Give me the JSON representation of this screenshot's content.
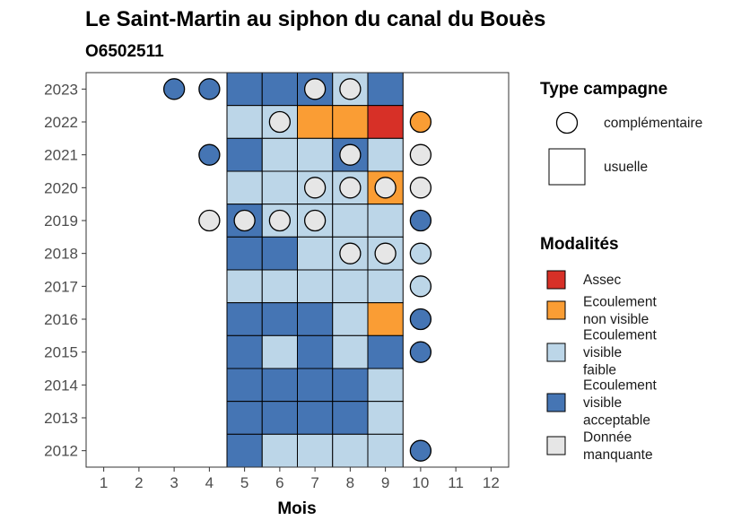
{
  "chart_data": {
    "type": "heatmap",
    "title": "Le Saint-Martin au siphon du canal du Bouès",
    "subtitle": "O6502511",
    "xlabel": "Mois",
    "ylabel": "",
    "x_ticks": [
      "1",
      "2",
      "3",
      "4",
      "5",
      "6",
      "7",
      "8",
      "9",
      "10",
      "11",
      "12"
    ],
    "y_ticks": [
      "2012",
      "2013",
      "2014",
      "2015",
      "2016",
      "2017",
      "2018",
      "2019",
      "2020",
      "2021",
      "2022",
      "2023"
    ],
    "xlim": [
      0.5,
      12.5
    ],
    "ylim": [
      2011.5,
      2023.5
    ],
    "grid": false,
    "legend_position": "right",
    "colors": {
      "Assec": "#d73027",
      "Ecoulement non visible": "#fa9d34",
      "Ecoulement visible faible": "#bcd6e8",
      "Ecoulement visible acceptable": "#4575b4",
      "Donnée manquante": "#e6e6e6"
    },
    "legend_type": {
      "title": "Type campagne",
      "items": [
        {
          "label": "complémentaire",
          "shape": "circle"
        },
        {
          "label": "usuelle",
          "shape": "square"
        }
      ]
    },
    "legend_modalites": {
      "title": "Modalités",
      "items": [
        {
          "key": "Assec",
          "lines": [
            "Assec"
          ]
        },
        {
          "key": "Ecoulement non visible",
          "lines": [
            "Ecoulement",
            "non visible"
          ]
        },
        {
          "key": "Ecoulement visible faible",
          "lines": [
            "Ecoulement",
            "visible",
            "faible"
          ]
        },
        {
          "key": "Ecoulement visible acceptable",
          "lines": [
            "Ecoulement",
            "visible",
            "acceptable"
          ]
        },
        {
          "key": "Donnée manquante",
          "lines": [
            "Donnée",
            "manquante"
          ]
        }
      ]
    },
    "usuelle": [
      {
        "year": 2023,
        "month": 5,
        "value": "Ecoulement visible acceptable"
      },
      {
        "year": 2023,
        "month": 6,
        "value": "Ecoulement visible acceptable"
      },
      {
        "year": 2023,
        "month": 7,
        "value": "Ecoulement visible acceptable"
      },
      {
        "year": 2023,
        "month": 8,
        "value": "Ecoulement visible faible"
      },
      {
        "year": 2023,
        "month": 9,
        "value": "Ecoulement visible acceptable"
      },
      {
        "year": 2022,
        "month": 5,
        "value": "Ecoulement visible faible"
      },
      {
        "year": 2022,
        "month": 6,
        "value": "Ecoulement visible faible"
      },
      {
        "year": 2022,
        "month": 7,
        "value": "Ecoulement non visible"
      },
      {
        "year": 2022,
        "month": 8,
        "value": "Ecoulement non visible"
      },
      {
        "year": 2022,
        "month": 9,
        "value": "Assec"
      },
      {
        "year": 2021,
        "month": 5,
        "value": "Ecoulement visible acceptable"
      },
      {
        "year": 2021,
        "month": 6,
        "value": "Ecoulement visible faible"
      },
      {
        "year": 2021,
        "month": 7,
        "value": "Ecoulement visible faible"
      },
      {
        "year": 2021,
        "month": 8,
        "value": "Ecoulement visible acceptable"
      },
      {
        "year": 2021,
        "month": 9,
        "value": "Ecoulement visible faible"
      },
      {
        "year": 2020,
        "month": 5,
        "value": "Ecoulement visible faible"
      },
      {
        "year": 2020,
        "month": 6,
        "value": "Ecoulement visible faible"
      },
      {
        "year": 2020,
        "month": 7,
        "value": "Ecoulement visible faible"
      },
      {
        "year": 2020,
        "month": 8,
        "value": "Ecoulement visible faible"
      },
      {
        "year": 2020,
        "month": 9,
        "value": "Ecoulement non visible"
      },
      {
        "year": 2019,
        "month": 5,
        "value": "Ecoulement visible acceptable"
      },
      {
        "year": 2019,
        "month": 6,
        "value": "Ecoulement visible faible"
      },
      {
        "year": 2019,
        "month": 7,
        "value": "Ecoulement visible faible"
      },
      {
        "year": 2019,
        "month": 8,
        "value": "Ecoulement visible faible"
      },
      {
        "year": 2019,
        "month": 9,
        "value": "Ecoulement visible faible"
      },
      {
        "year": 2018,
        "month": 5,
        "value": "Ecoulement visible acceptable"
      },
      {
        "year": 2018,
        "month": 6,
        "value": "Ecoulement visible acceptable"
      },
      {
        "year": 2018,
        "month": 7,
        "value": "Ecoulement visible faible"
      },
      {
        "year": 2018,
        "month": 8,
        "value": "Ecoulement visible faible"
      },
      {
        "year": 2018,
        "month": 9,
        "value": "Ecoulement visible faible"
      },
      {
        "year": 2017,
        "month": 5,
        "value": "Ecoulement visible faible"
      },
      {
        "year": 2017,
        "month": 6,
        "value": "Ecoulement visible faible"
      },
      {
        "year": 2017,
        "month": 7,
        "value": "Ecoulement visible faible"
      },
      {
        "year": 2017,
        "month": 8,
        "value": "Ecoulement visible faible"
      },
      {
        "year": 2017,
        "month": 9,
        "value": "Ecoulement visible faible"
      },
      {
        "year": 2016,
        "month": 5,
        "value": "Ecoulement visible acceptable"
      },
      {
        "year": 2016,
        "month": 6,
        "value": "Ecoulement visible acceptable"
      },
      {
        "year": 2016,
        "month": 7,
        "value": "Ecoulement visible acceptable"
      },
      {
        "year": 2016,
        "month": 8,
        "value": "Ecoulement visible faible"
      },
      {
        "year": 2016,
        "month": 9,
        "value": "Ecoulement non visible"
      },
      {
        "year": 2015,
        "month": 5,
        "value": "Ecoulement visible acceptable"
      },
      {
        "year": 2015,
        "month": 6,
        "value": "Ecoulement visible faible"
      },
      {
        "year": 2015,
        "month": 7,
        "value": "Ecoulement visible acceptable"
      },
      {
        "year": 2015,
        "month": 8,
        "value": "Ecoulement visible faible"
      },
      {
        "year": 2015,
        "month": 9,
        "value": "Ecoulement visible acceptable"
      },
      {
        "year": 2014,
        "month": 5,
        "value": "Ecoulement visible acceptable"
      },
      {
        "year": 2014,
        "month": 6,
        "value": "Ecoulement visible acceptable"
      },
      {
        "year": 2014,
        "month": 7,
        "value": "Ecoulement visible acceptable"
      },
      {
        "year": 2014,
        "month": 8,
        "value": "Ecoulement visible acceptable"
      },
      {
        "year": 2014,
        "month": 9,
        "value": "Ecoulement visible faible"
      },
      {
        "year": 2013,
        "month": 5,
        "value": "Ecoulement visible acceptable"
      },
      {
        "year": 2013,
        "month": 6,
        "value": "Ecoulement visible acceptable"
      },
      {
        "year": 2013,
        "month": 7,
        "value": "Ecoulement visible acceptable"
      },
      {
        "year": 2013,
        "month": 8,
        "value": "Ecoulement visible acceptable"
      },
      {
        "year": 2013,
        "month": 9,
        "value": "Ecoulement visible faible"
      },
      {
        "year": 2012,
        "month": 5,
        "value": "Ecoulement visible acceptable"
      },
      {
        "year": 2012,
        "month": 6,
        "value": "Ecoulement visible faible"
      },
      {
        "year": 2012,
        "month": 7,
        "value": "Ecoulement visible faible"
      },
      {
        "year": 2012,
        "month": 8,
        "value": "Ecoulement visible faible"
      },
      {
        "year": 2012,
        "month": 9,
        "value": "Ecoulement visible faible"
      }
    ],
    "complementaire": [
      {
        "year": 2023,
        "month": 3,
        "value": "Ecoulement visible acceptable"
      },
      {
        "year": 2023,
        "month": 4,
        "value": "Ecoulement visible acceptable"
      },
      {
        "year": 2023,
        "month": 7,
        "value": "Donnée manquante"
      },
      {
        "year": 2023,
        "month": 8,
        "value": "Donnée manquante"
      },
      {
        "year": 2022,
        "month": 6,
        "value": "Donnée manquante"
      },
      {
        "year": 2022,
        "month": 10,
        "value": "Ecoulement non visible"
      },
      {
        "year": 2021,
        "month": 4,
        "value": "Ecoulement visible acceptable"
      },
      {
        "year": 2021,
        "month": 8,
        "value": "Donnée manquante"
      },
      {
        "year": 2021,
        "month": 10,
        "value": "Donnée manquante"
      },
      {
        "year": 2020,
        "month": 7,
        "value": "Donnée manquante"
      },
      {
        "year": 2020,
        "month": 8,
        "value": "Donnée manquante"
      },
      {
        "year": 2020,
        "month": 9,
        "value": "Donnée manquante"
      },
      {
        "year": 2020,
        "month": 10,
        "value": "Donnée manquante"
      },
      {
        "year": 2019,
        "month": 4,
        "value": "Donnée manquante"
      },
      {
        "year": 2019,
        "month": 5,
        "value": "Donnée manquante"
      },
      {
        "year": 2019,
        "month": 6,
        "value": "Donnée manquante"
      },
      {
        "year": 2019,
        "month": 7,
        "value": "Donnée manquante"
      },
      {
        "year": 2019,
        "month": 10,
        "value": "Ecoulement visible acceptable"
      },
      {
        "year": 2018,
        "month": 8,
        "value": "Donnée manquante"
      },
      {
        "year": 2018,
        "month": 9,
        "value": "Donnée manquante"
      },
      {
        "year": 2018,
        "month": 10,
        "value": "Ecoulement visible faible"
      },
      {
        "year": 2017,
        "month": 10,
        "value": "Ecoulement visible faible"
      },
      {
        "year": 2016,
        "month": 10,
        "value": "Ecoulement visible acceptable"
      },
      {
        "year": 2015,
        "month": 10,
        "value": "Ecoulement visible acceptable"
      },
      {
        "year": 2012,
        "month": 10,
        "value": "Ecoulement visible acceptable"
      }
    ]
  }
}
